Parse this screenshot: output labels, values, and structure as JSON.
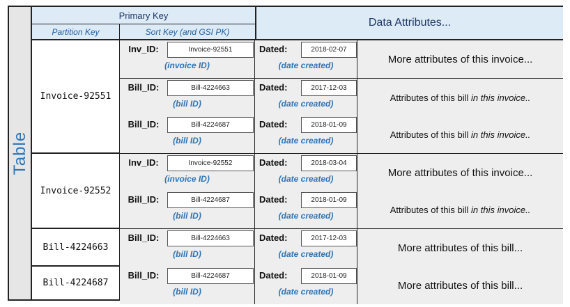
{
  "table_label": "Table",
  "header": {
    "primary_key": "Primary Key",
    "partition_key": "Partition Key",
    "sort_key": "Sort Key (and GSI PK)",
    "data_attributes": "Data Attributes..."
  },
  "partitions": [
    {
      "key": "Invoice-92551"
    },
    {
      "key": "Invoice-92552"
    },
    {
      "key": "Bill-4224663"
    },
    {
      "key": "Bill-4224687"
    }
  ],
  "rows": [
    {
      "sk_label": "Inv_ID:",
      "sk_value": "Invoice-92551",
      "sk_note": "(invoice ID)",
      "date_label": "Dated:",
      "date_value": "2018-02-07",
      "date_note": "(date created)",
      "attr_text": "More attributes of this invoice...",
      "attr_italic": ""
    },
    {
      "sk_label": "Bill_ID:",
      "sk_value": "Bill-4224663",
      "sk_note": "(bill ID)",
      "date_label": "Dated:",
      "date_value": "2017-12-03",
      "date_note": "(date created)",
      "attr_text": "Attributes of this bill ",
      "attr_italic": "in this invoice.."
    },
    {
      "sk_label": "Bill_ID:",
      "sk_value": "Bill-4224687",
      "sk_note": "(bill ID)",
      "date_label": "Dated:",
      "date_value": "2018-01-09",
      "date_note": "(date created)",
      "attr_text": "Attributes of this bill ",
      "attr_italic": "in this invoice.."
    },
    {
      "sk_label": "Inv_ID:",
      "sk_value": "Invoice-92552",
      "sk_note": "(invoice ID)",
      "date_label": "Dated:",
      "date_value": "2018-03-04",
      "date_note": "(date created)",
      "attr_text": "More attributes of this invoice...",
      "attr_italic": ""
    },
    {
      "sk_label": "Bill_ID:",
      "sk_value": "Bill-4224687",
      "sk_note": "(bill ID)",
      "date_label": "Dated:",
      "date_value": "2018-01-09",
      "date_note": "(date created)",
      "attr_text": "Attributes of this bill ",
      "attr_italic": "in this invoice.."
    },
    {
      "sk_label": "Bill_ID:",
      "sk_value": "Bill-4224663",
      "sk_note": "(bill ID)",
      "date_label": "Dated:",
      "date_value": "2017-12-03",
      "date_note": "(date created)",
      "attr_text": "More attributes of this bill...",
      "attr_italic": ""
    },
    {
      "sk_label": "Bill_ID:",
      "sk_value": "Bill-4224687",
      "sk_note": "(bill ID)",
      "date_label": "Dated:",
      "date_value": "2018-01-09",
      "date_note": "(date created)",
      "attr_text": "More attributes of this bill...",
      "attr_italic": ""
    }
  ]
}
